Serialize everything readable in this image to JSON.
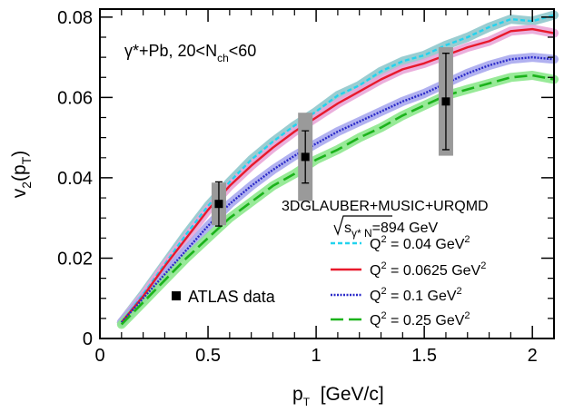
{
  "chart_data": {
    "type": "line",
    "title": "",
    "annotation": {
      "system": "γ*+Pb, 20<N",
      "sub": "ch",
      "tail": "<60"
    },
    "model": {
      "name": "3DGLAUBER+MUSIC+URQMD",
      "energy_prefix": "s",
      "energy_sub": "γ* N",
      "energy_value": "=894 GeV"
    },
    "xlabel": {
      "main": "p",
      "sub": "T",
      "tail": "  [GeV/c]"
    },
    "ylabel": {
      "main": "v",
      "sub1": "2",
      "mid": "(p",
      "sub2": "T",
      "tail": ")"
    },
    "xlim": [
      0,
      2.1
    ],
    "ylim": [
      0,
      0.082
    ],
    "xticks": [
      "0",
      "0.5",
      "1",
      "1.5",
      "2"
    ],
    "xtick_values": [
      0,
      0.5,
      1,
      1.5,
      2
    ],
    "yticks": [
      "0",
      "0.02",
      "0.04",
      "0.06",
      "0.08"
    ],
    "ytick_values": [
      0,
      0.02,
      0.04,
      0.06,
      0.08
    ],
    "grid": false,
    "legend_position": "bottom-right",
    "series": [
      {
        "name": "Q² = 0.04 GeV²",
        "label_pre": "Q",
        "label_sup1": "2",
        "label_mid": " = 0.04 GeV",
        "label_sup2": "2",
        "color": "#22d3ee",
        "band_color": "#8fc8cc",
        "dash": "dotted",
        "x": [
          0.1,
          0.2,
          0.3,
          0.4,
          0.5,
          0.6,
          0.7,
          0.8,
          0.9,
          1.0,
          1.1,
          1.2,
          1.3,
          1.4,
          1.5,
          1.6,
          1.7,
          1.8,
          1.9,
          2.0,
          2.1
        ],
        "y": [
          0.004,
          0.011,
          0.0185,
          0.026,
          0.033,
          0.039,
          0.0445,
          0.049,
          0.053,
          0.0565,
          0.0605,
          0.063,
          0.0665,
          0.069,
          0.0705,
          0.073,
          0.075,
          0.0775,
          0.0795,
          0.079,
          0.0805
        ]
      },
      {
        "name": "Q² = 0.0625 GeV²",
        "label_pre": "Q",
        "label_sup1": "2",
        "label_mid": " = 0.0625 GeV",
        "label_sup2": "2",
        "color": "#e8192c",
        "band_color": "#e9a6d8",
        "dash": "solid",
        "x": [
          0.1,
          0.2,
          0.3,
          0.4,
          0.5,
          0.6,
          0.7,
          0.8,
          0.9,
          1.0,
          1.1,
          1.2,
          1.3,
          1.4,
          1.5,
          1.6,
          1.7,
          1.8,
          1.9,
          2.0,
          2.1
        ],
        "y": [
          0.004,
          0.0105,
          0.018,
          0.025,
          0.032,
          0.038,
          0.043,
          0.0475,
          0.0515,
          0.055,
          0.0585,
          0.0615,
          0.0645,
          0.067,
          0.0685,
          0.0705,
          0.0725,
          0.074,
          0.0765,
          0.077,
          0.076
        ]
      },
      {
        "name": "Q² = 0.1 GeV²",
        "label_pre": "Q",
        "label_sup1": "2",
        "label_mid": " = 0.1 GeV",
        "label_sup2": "2",
        "color": "#2a2ac8",
        "band_color": "#a9a8ee",
        "dash": "fine-dotted",
        "x": [
          0.1,
          0.2,
          0.3,
          0.4,
          0.5,
          0.6,
          0.7,
          0.8,
          0.9,
          1.0,
          1.1,
          1.2,
          1.3,
          1.4,
          1.5,
          1.6,
          1.7,
          1.8,
          1.9,
          2.0,
          2.1
        ],
        "y": [
          0.004,
          0.01,
          0.016,
          0.022,
          0.028,
          0.0335,
          0.038,
          0.042,
          0.0455,
          0.0485,
          0.0515,
          0.054,
          0.0565,
          0.059,
          0.061,
          0.0635,
          0.066,
          0.068,
          0.0695,
          0.07,
          0.0695
        ]
      },
      {
        "name": "Q² = 0.25 GeV²",
        "label_pre": "Q",
        "label_sup1": "2",
        "label_mid": " = 0.25 GeV",
        "label_sup2": "2",
        "color": "#1bb31b",
        "band_color": "#8de88d",
        "dash": "dashed",
        "x": [
          0.1,
          0.2,
          0.3,
          0.4,
          0.5,
          0.6,
          0.7,
          0.8,
          0.9,
          1.0,
          1.1,
          1.2,
          1.3,
          1.4,
          1.5,
          1.6,
          1.7,
          1.8,
          1.9,
          2.0,
          2.1
        ],
        "y": [
          0.0035,
          0.009,
          0.0145,
          0.02,
          0.025,
          0.03,
          0.034,
          0.038,
          0.041,
          0.0445,
          0.047,
          0.05,
          0.0525,
          0.0555,
          0.058,
          0.0605,
          0.062,
          0.0635,
          0.065,
          0.0655,
          0.0645
        ]
      }
    ],
    "data_points": {
      "name": "ATLAS data",
      "x": [
        0.55,
        0.95,
        1.6
      ],
      "y": [
        0.0335,
        0.0452,
        0.059
      ],
      "stat_err": [
        0.0055,
        0.0065,
        0.012
      ],
      "sys_err": [
        0.0053,
        0.011,
        0.0135
      ]
    }
  }
}
